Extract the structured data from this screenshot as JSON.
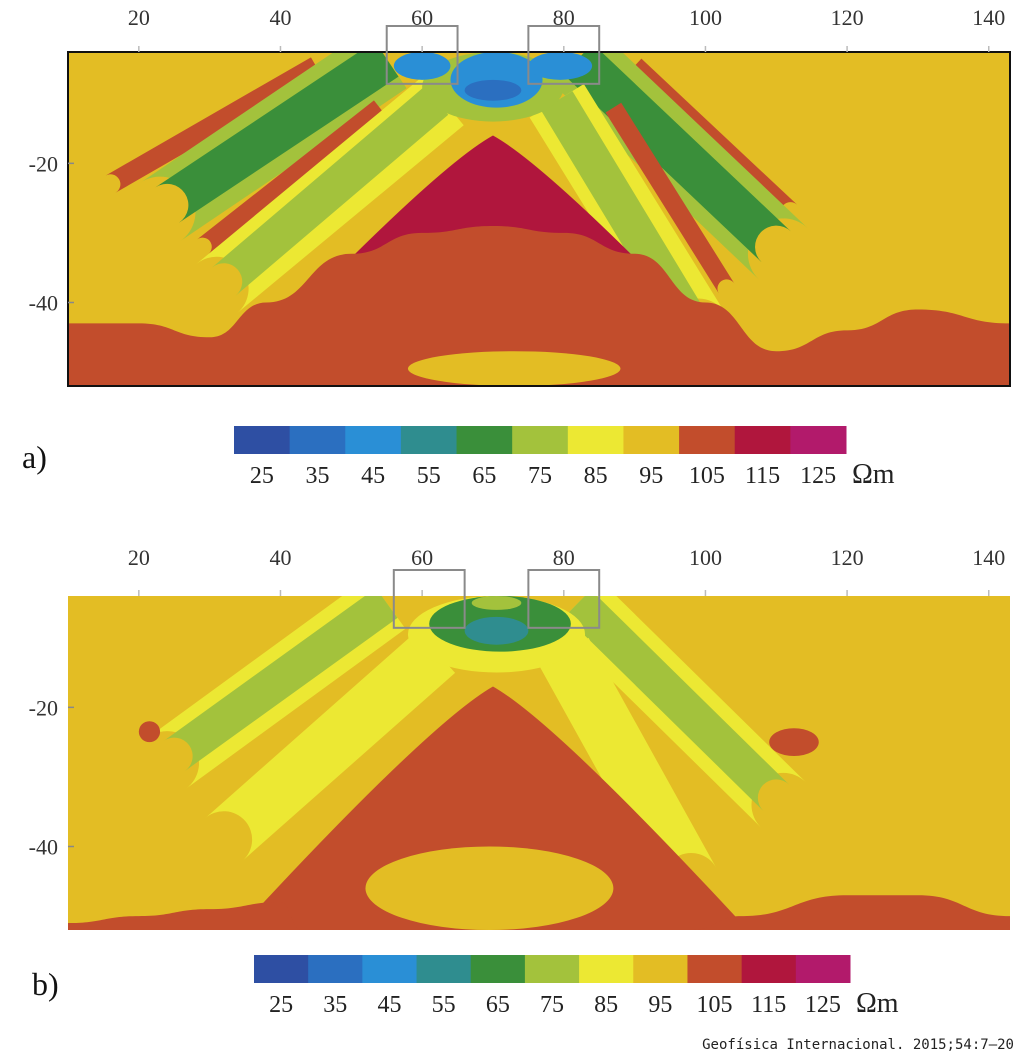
{
  "source_credit": "Geofísica Internacional. 2015;54:7–20",
  "chart_data": [
    {
      "type": "heatmap",
      "panel_label": "a)",
      "x_ticks": [
        20,
        40,
        60,
        80,
        100,
        120,
        140
      ],
      "y_ticks": [
        -20,
        -40
      ],
      "xlim": [
        10,
        143
      ],
      "ylim": [
        -52,
        -4
      ],
      "rectangles": [
        {
          "x0": 55,
          "x1": 65,
          "y0": -4,
          "y1": -8
        },
        {
          "x0": 75,
          "x1": 85,
          "y0": -4,
          "y1": -8
        }
      ],
      "colorbar": {
        "ticks": [
          "25",
          "35",
          "45",
          "55",
          "65",
          "75",
          "85",
          "95",
          "105",
          "115",
          "125"
        ],
        "colors": [
          "#2e4fa3",
          "#2b6fc0",
          "#2a8fd6",
          "#2f8d8f",
          "#3a8f3a",
          "#a3c23c",
          "#ece833",
          "#e3bd24",
          "#c24d2c",
          "#b0163d",
          "#b21a6b"
        ],
        "unit": "Ωm"
      },
      "background_value": 95,
      "features": [
        {
          "shape": "band",
          "value": 105,
          "x_top": 45,
          "y_top": -6,
          "x_bot": 16,
          "y_bot": -23,
          "half_width": 1.4
        },
        {
          "shape": "band",
          "value": 105,
          "x_top": 90,
          "y_top": -6,
          "x_bot": 112,
          "y_bot": -27,
          "half_width": 1.4
        },
        {
          "shape": "band",
          "value": 75,
          "x_top": 55,
          "y_top": -5,
          "x_bot": 23,
          "y_bot": -27,
          "half_width": 5.0
        },
        {
          "shape": "band",
          "value": 65,
          "x_top": 55,
          "y_top": -5,
          "x_bot": 24,
          "y_bot": -26,
          "half_width": 3.0
        },
        {
          "shape": "band",
          "value": 75,
          "x_top": 82,
          "y_top": -5,
          "x_bot": 111,
          "y_bot": -33,
          "half_width": 5.0
        },
        {
          "shape": "band",
          "value": 65,
          "x_top": 82,
          "y_top": -5,
          "x_bot": 110,
          "y_bot": -32,
          "half_width": 3.0
        },
        {
          "shape": "band",
          "value": 105,
          "x_top": 54,
          "y_top": -12,
          "x_bot": 29,
          "y_bot": -32,
          "half_width": 1.3
        },
        {
          "shape": "band",
          "value": 105,
          "x_top": 87,
          "y_top": -12,
          "x_bot": 103,
          "y_bot": -38,
          "half_width": 1.3
        },
        {
          "shape": "band",
          "value": 85,
          "x_top": 63,
          "y_top": -11,
          "x_bot": 31,
          "y_bot": -38,
          "half_width": 4.5
        },
        {
          "shape": "band",
          "value": 75,
          "x_top": 62,
          "y_top": -11,
          "x_bot": 32,
          "y_bot": -37,
          "half_width": 2.6
        },
        {
          "shape": "band",
          "value": 85,
          "x_top": 79,
          "y_top": -11,
          "x_bot": 99,
          "y_bot": -44,
          "half_width": 4.5
        },
        {
          "shape": "band",
          "value": 75,
          "x_top": 79,
          "y_top": -11,
          "x_bot": 98,
          "y_bot": -43,
          "half_width": 2.6
        },
        {
          "shape": "blob",
          "value": 75,
          "x0": 60,
          "x1": 80,
          "y0": -4,
          "y1": -14
        },
        {
          "shape": "blob",
          "value": 45,
          "x0": 64,
          "x1": 77,
          "y0": -4,
          "y1": -12
        },
        {
          "shape": "blob",
          "value": 35,
          "x0": 66,
          "x1": 74,
          "y0": -8,
          "y1": -11
        },
        {
          "shape": "blob",
          "value": 45,
          "x0": 56,
          "x1": 64,
          "y0": -4,
          "y1": -8
        },
        {
          "shape": "blob",
          "value": 45,
          "x0": 75,
          "x1": 84,
          "y0": -4,
          "y1": -8
        },
        {
          "shape": "wedge",
          "value": 115,
          "apex_x": 70,
          "apex_y": -16,
          "left_x": 38,
          "right_x": 102,
          "base_y": -46
        },
        {
          "shape": "basement",
          "value": 105,
          "points": [
            [
              10,
              -43
            ],
            [
              20,
              -43
            ],
            [
              30,
              -45
            ],
            [
              38,
              -40
            ],
            [
              50,
              -33
            ],
            [
              60,
              -30
            ],
            [
              70,
              -29
            ],
            [
              80,
              -30
            ],
            [
              90,
              -33
            ],
            [
              100,
              -40
            ],
            [
              110,
              -47
            ],
            [
              120,
              -44
            ],
            [
              130,
              -41
            ],
            [
              143,
              -43
            ]
          ]
        },
        {
          "shape": "blob",
          "value": 95,
          "x0": 58,
          "x1": 88,
          "y0": -47,
          "y1": -52
        }
      ]
    },
    {
      "type": "heatmap",
      "panel_label": "b)",
      "x_ticks": [
        20,
        40,
        60,
        80,
        100,
        120,
        140
      ],
      "y_ticks": [
        -20,
        -40
      ],
      "xlim": [
        10,
        143
      ],
      "ylim": [
        -52,
        -4
      ],
      "rectangles": [
        {
          "x0": 56,
          "x1": 66,
          "y0": -4,
          "y1": -8
        },
        {
          "x0": 75,
          "x1": 85,
          "y0": -4,
          "y1": -8
        }
      ],
      "colorbar": {
        "ticks": [
          "25",
          "35",
          "45",
          "55",
          "65",
          "75",
          "85",
          "95",
          "105",
          "115",
          "125"
        ],
        "colors": [
          "#2e4fa3",
          "#2b6fc0",
          "#2a8fd6",
          "#2f8d8f",
          "#3a8f3a",
          "#a3c23c",
          "#ece833",
          "#e3bd24",
          "#c24d2c",
          "#b0163d",
          "#b21a6b"
        ],
        "unit": "Ωm"
      },
      "background_value": 95,
      "features": [
        {
          "shape": "band",
          "value": 85,
          "x_top": 55,
          "y_top": -5,
          "x_bot": 24,
          "y_bot": -28,
          "half_width": 4.5
        },
        {
          "shape": "band",
          "value": 75,
          "x_top": 55,
          "y_top": -5,
          "x_bot": 25,
          "y_bot": -27,
          "half_width": 2.6
        },
        {
          "shape": "band",
          "value": 85,
          "x_top": 82,
          "y_top": -5,
          "x_bot": 111,
          "y_bot": -34,
          "half_width": 4.5
        },
        {
          "shape": "band",
          "value": 75,
          "x_top": 82,
          "y_top": -5,
          "x_bot": 110,
          "y_bot": -33,
          "half_width": 2.6
        },
        {
          "shape": "band",
          "value": 85,
          "x_top": 62,
          "y_top": -12,
          "x_bot": 32,
          "y_bot": -39,
          "half_width": 4.0
        },
        {
          "shape": "band",
          "value": 85,
          "x_top": 80,
          "y_top": -12,
          "x_bot": 98,
          "y_bot": -45,
          "half_width": 4.0
        },
        {
          "shape": "blob",
          "value": 85,
          "x0": 58,
          "x1": 83,
          "y0": -4,
          "y1": -15
        },
        {
          "shape": "blob",
          "value": 65,
          "x0": 61,
          "x1": 81,
          "y0": -4,
          "y1": -12
        },
        {
          "shape": "blob",
          "value": 75,
          "x0": 67,
          "x1": 74,
          "y0": -4,
          "y1": -6
        },
        {
          "shape": "blob",
          "value": 55,
          "x0": 66,
          "x1": 75,
          "y0": -7,
          "y1": -11
        },
        {
          "shape": "blob",
          "value": 105,
          "x0": 20,
          "x1": 23,
          "y0": -22,
          "y1": -25
        },
        {
          "shape": "blob",
          "value": 105,
          "x0": 109,
          "x1": 116,
          "y0": -23,
          "y1": -27
        },
        {
          "shape": "blob",
          "value": 105,
          "x0": 68,
          "x1": 72,
          "y0": -19,
          "y1": -21
        },
        {
          "shape": "wedge",
          "value": 105,
          "apex_x": 70,
          "apex_y": -17,
          "left_x": 34,
          "right_x": 106,
          "base_y": -52
        },
        {
          "shape": "basement",
          "value": 105,
          "points": [
            [
              10,
              -51
            ],
            [
              20,
              -50
            ],
            [
              30,
              -49
            ],
            [
              40,
              -48
            ],
            [
              43,
              -52
            ]
          ]
        },
        {
          "shape": "basement",
          "value": 105,
          "points": [
            [
              98,
              -52
            ],
            [
              105,
              -50
            ],
            [
              120,
              -47
            ],
            [
              130,
              -47
            ],
            [
              143,
              -50
            ]
          ]
        },
        {
          "shape": "blob",
          "value": 95,
          "x0": 52,
          "x1": 87,
          "y0": -40,
          "y1": -52
        }
      ]
    }
  ]
}
